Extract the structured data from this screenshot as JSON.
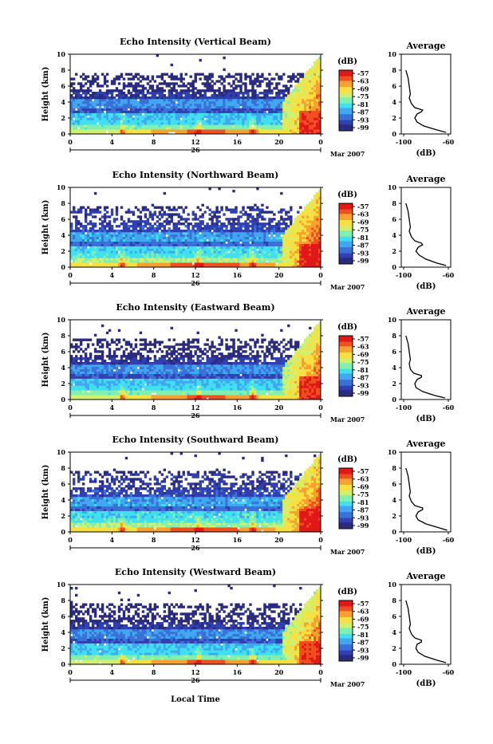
{
  "figure": {
    "x_axis_label": "Local Time",
    "date_label": "Mar 2007",
    "day_label": "26",
    "colorbar_unit": "(dB)",
    "colorbar_ticks": [
      "-57",
      "-63",
      "-69",
      "-75",
      "-81",
      "-87",
      "-93",
      "-99"
    ],
    "colormap": [
      "#2a2a80",
      "#3040b0",
      "#3a70d8",
      "#40a8f0",
      "#40e0f0",
      "#80f0b0",
      "#d0f070",
      "#f8e040",
      "#f8a030",
      "#f05020",
      "#e01818"
    ],
    "background": "#ffffff"
  },
  "chart_data": [
    {
      "type": "heatmap",
      "title": "Echo Intensity (Vertical Beam)",
      "ylabel": "Height (km)",
      "xlim": [
        0,
        24
      ],
      "ylim": [
        0,
        10
      ],
      "x_ticks": [
        "0",
        "4",
        "8",
        "12",
        "16",
        "20",
        "0"
      ],
      "y_ticks": [
        "0",
        "2",
        "4",
        "6",
        "8",
        "10"
      ],
      "colorbar_range": [
        -99,
        -57
      ],
      "profile": {
        "title": "Average",
        "xlabel": "(dB)",
        "x_ticks": [
          "-100",
          "-60"
        ],
        "xlim": [
          -100,
          -60
        ],
        "ylim": [
          0,
          10
        ],
        "y_ticks": [
          "0",
          "2",
          "4",
          "6",
          "8",
          "10"
        ],
        "heights": [
          0.2,
          0.5,
          1.0,
          1.5,
          2.0,
          2.5,
          2.8,
          3.0,
          3.3,
          3.8,
          4.5,
          5.0,
          6.0,
          7.0,
          7.5,
          8.0
        ],
        "values": [
          -62,
          -70,
          -82,
          -88,
          -90,
          -88,
          -84,
          -83,
          -90,
          -93,
          -95,
          -94,
          -95,
          -96,
          -97,
          -98
        ]
      }
    },
    {
      "type": "heatmap",
      "title": "Echo Intensity (Northward Beam)",
      "ylabel": "Height (km)",
      "xlim": [
        0,
        24
      ],
      "ylim": [
        0,
        10
      ],
      "x_ticks": [
        "0",
        "4",
        "8",
        "12",
        "16",
        "20",
        "0"
      ],
      "y_ticks": [
        "0",
        "2",
        "4",
        "6",
        "8",
        "10"
      ],
      "colorbar_range": [
        -99,
        -57
      ],
      "profile": {
        "title": "Average",
        "xlabel": "(dB)",
        "x_ticks": [
          "-100",
          "-60"
        ],
        "xlim": [
          -100,
          -60
        ],
        "ylim": [
          0,
          10
        ],
        "y_ticks": [
          "0",
          "2",
          "4",
          "6",
          "8",
          "10"
        ],
        "heights": [
          0.2,
          0.5,
          1.0,
          1.5,
          2.0,
          2.5,
          2.8,
          3.0,
          3.3,
          3.8,
          4.5,
          5.0,
          6.0,
          7.0,
          7.5,
          8.0
        ],
        "values": [
          -62,
          -70,
          -80,
          -86,
          -89,
          -87,
          -83,
          -84,
          -90,
          -93,
          -95,
          -94,
          -95,
          -96,
          -97,
          -98
        ]
      }
    },
    {
      "type": "heatmap",
      "title": "Echo Intensity (Eastward Beam)",
      "ylabel": "Height (km)",
      "xlim": [
        0,
        24
      ],
      "ylim": [
        0,
        10
      ],
      "x_ticks": [
        "0",
        "4",
        "8",
        "12",
        "16",
        "20",
        "0"
      ],
      "y_ticks": [
        "0",
        "2",
        "4",
        "6",
        "8",
        "10"
      ],
      "colorbar_range": [
        -99,
        -57
      ],
      "profile": {
        "title": "Average",
        "xlabel": "(dB)",
        "x_ticks": [
          "-100",
          "-60"
        ],
        "xlim": [
          -100,
          -60
        ],
        "ylim": [
          0,
          10
        ],
        "y_ticks": [
          "0",
          "2",
          "4",
          "6",
          "8",
          "10"
        ],
        "heights": [
          0.2,
          0.5,
          1.0,
          1.5,
          2.0,
          2.5,
          2.8,
          3.0,
          3.3,
          3.8,
          4.5,
          5.0,
          6.0,
          7.0,
          7.5,
          8.0
        ],
        "values": [
          -63,
          -72,
          -83,
          -89,
          -90,
          -88,
          -84,
          -84,
          -91,
          -94,
          -95,
          -94,
          -95,
          -96,
          -97,
          -98
        ]
      }
    },
    {
      "type": "heatmap",
      "title": "Echo Intensity (Southward Beam)",
      "ylabel": "Height (km)",
      "xlim": [
        0,
        24
      ],
      "ylim": [
        0,
        10
      ],
      "x_ticks": [
        "0",
        "4",
        "8",
        "12",
        "16",
        "20",
        "0"
      ],
      "y_ticks": [
        "0",
        "2",
        "4",
        "6",
        "8",
        "10"
      ],
      "colorbar_range": [
        -99,
        -57
      ],
      "profile": {
        "title": "Average",
        "xlabel": "(dB)",
        "x_ticks": [
          "-100",
          "-60"
        ],
        "xlim": [
          -100,
          -60
        ],
        "ylim": [
          0,
          10
        ],
        "y_ticks": [
          "0",
          "2",
          "4",
          "6",
          "8",
          "10"
        ],
        "heights": [
          0.2,
          0.5,
          1.0,
          1.5,
          2.0,
          2.5,
          2.8,
          3.0,
          3.3,
          3.8,
          4.5,
          5.0,
          6.0,
          7.0,
          7.5,
          8.0
        ],
        "values": [
          -61,
          -68,
          -80,
          -87,
          -89,
          -87,
          -83,
          -83,
          -90,
          -93,
          -95,
          -94,
          -95,
          -96,
          -97,
          -98
        ]
      }
    },
    {
      "type": "heatmap",
      "title": "Echo Intensity (Westward Beam)",
      "ylabel": "Height (km)",
      "xlim": [
        0,
        24
      ],
      "ylim": [
        0,
        10
      ],
      "x_ticks": [
        "0",
        "4",
        "8",
        "12",
        "16",
        "20",
        "0"
      ],
      "y_ticks": [
        "0",
        "2",
        "4",
        "6",
        "8",
        "10"
      ],
      "colorbar_range": [
        -99,
        -57
      ],
      "profile": {
        "title": "Average",
        "xlabel": "(dB)",
        "x_ticks": [
          "-100",
          "-60"
        ],
        "xlim": [
          -100,
          -60
        ],
        "ylim": [
          0,
          10
        ],
        "y_ticks": [
          "0",
          "2",
          "4",
          "6",
          "8",
          "10"
        ],
        "heights": [
          0.2,
          0.5,
          1.0,
          1.5,
          2.0,
          2.5,
          2.8,
          3.0,
          3.3,
          3.8,
          4.5,
          5.0,
          6.0,
          7.0,
          7.5,
          8.0
        ],
        "values": [
          -62,
          -70,
          -81,
          -87,
          -89,
          -88,
          -84,
          -84,
          -90,
          -93,
          -95,
          -94,
          -95,
          -96,
          -97,
          -98
        ]
      }
    }
  ]
}
